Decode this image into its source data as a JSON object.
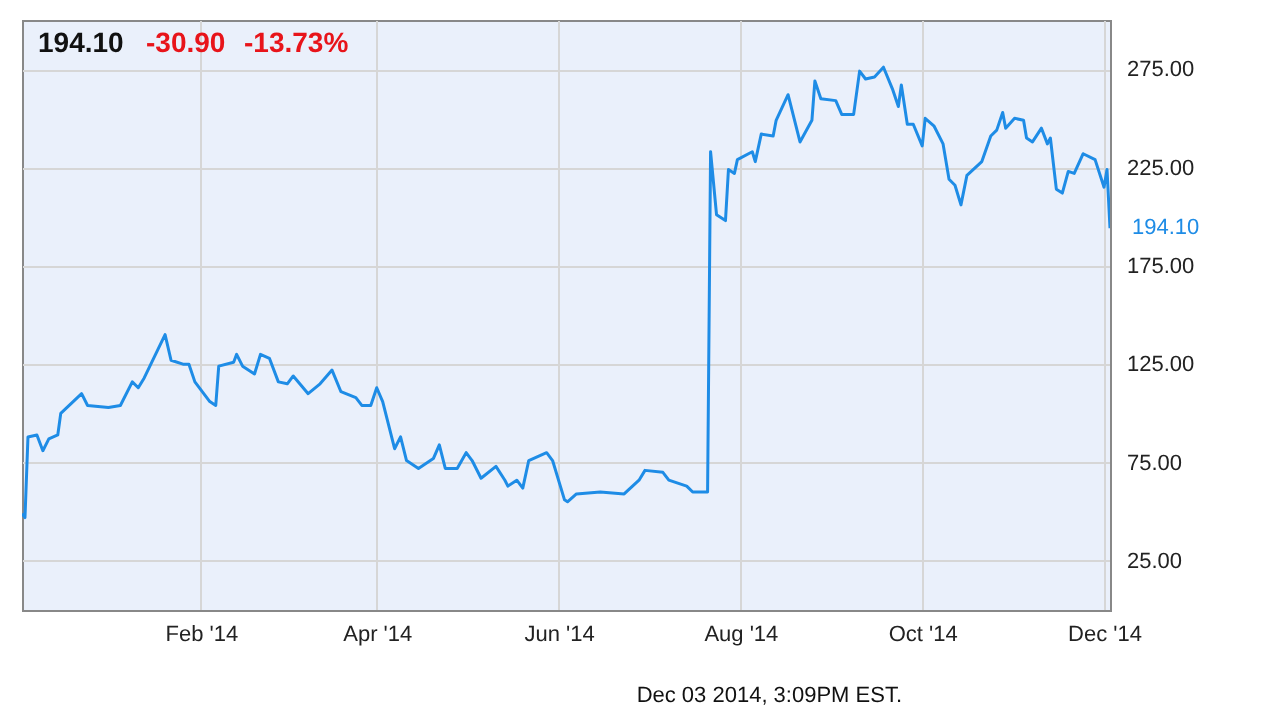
{
  "chart_data": {
    "type": "line",
    "x": [
      "2013-12-03",
      "2013-12-04",
      "2013-12-05",
      "2013-12-08",
      "2013-12-10",
      "2013-12-12",
      "2013-12-15",
      "2013-12-16",
      "2013-12-23",
      "2013-12-25",
      "2014-01-01",
      "2014-01-05",
      "2014-01-09",
      "2014-01-11",
      "2014-01-13",
      "2014-01-20",
      "2014-01-22",
      "2014-01-26",
      "2014-01-28",
      "2014-01-30",
      "2014-02-04",
      "2014-02-06",
      "2014-02-07",
      "2014-02-12",
      "2014-02-13",
      "2014-02-15",
      "2014-02-19",
      "2014-02-21",
      "2014-02-24",
      "2014-02-27",
      "2014-03-02",
      "2014-03-04",
      "2014-03-09",
      "2014-03-13",
      "2014-03-17",
      "2014-03-20",
      "2014-03-25",
      "2014-03-27",
      "2014-03-30",
      "2014-04-01",
      "2014-04-03",
      "2014-04-07",
      "2014-04-09",
      "2014-04-11",
      "2014-04-15",
      "2014-04-20",
      "2014-04-22",
      "2014-04-24",
      "2014-04-28",
      "2014-05-01",
      "2014-05-03",
      "2014-05-06",
      "2014-05-11",
      "2014-05-14",
      "2014-05-15",
      "2014-05-18",
      "2014-05-20",
      "2014-05-22",
      "2014-05-28",
      "2014-05-30",
      "2014-06-03",
      "2014-06-04",
      "2014-06-07",
      "2014-06-15",
      "2014-06-23",
      "2014-06-28",
      "2014-06-30",
      "2014-07-06",
      "2014-07-08",
      "2014-07-14",
      "2014-07-16",
      "2014-07-21",
      "2014-07-22",
      "2014-07-24",
      "2014-07-27",
      "2014-07-28",
      "2014-07-30",
      "2014-07-31",
      "2014-08-05",
      "2014-08-06",
      "2014-08-08",
      "2014-08-12",
      "2014-08-13",
      "2014-08-17",
      "2014-08-21",
      "2014-08-25",
      "2014-08-26",
      "2014-08-28",
      "2014-09-02",
      "2014-09-04",
      "2014-09-08",
      "2014-09-10",
      "2014-09-12",
      "2014-09-15",
      "2014-09-18",
      "2014-09-21",
      "2014-09-23",
      "2014-09-24",
      "2014-09-26",
      "2014-09-28",
      "2014-10-01",
      "2014-10-02",
      "2014-10-05",
      "2014-10-08",
      "2014-10-10",
      "2014-10-12",
      "2014-10-14",
      "2014-10-16",
      "2014-10-21",
      "2014-10-24",
      "2014-10-26",
      "2014-10-28",
      "2014-10-29",
      "2014-11-01",
      "2014-11-04",
      "2014-11-05",
      "2014-11-07",
      "2014-11-10",
      "2014-11-12",
      "2014-11-13",
      "2014-11-15",
      "2014-11-17",
      "2014-11-19",
      "2014-11-21",
      "2014-11-24",
      "2014-11-28",
      "2014-12-01",
      "2014-12-02",
      "2014-12-03"
    ],
    "series": [
      {
        "color": "#1e8ce6",
        "values": [
          49,
          47,
          88,
          89,
          81,
          87,
          89,
          100,
          110,
          104,
          103,
          104,
          116,
          113,
          118,
          140,
          127,
          125,
          125,
          116,
          106,
          104,
          124,
          126,
          130,
          124,
          120,
          130,
          128,
          116,
          115,
          119,
          110,
          115,
          122,
          111,
          108,
          104,
          104,
          113,
          106,
          82,
          88,
          76,
          72,
          77,
          84,
          72,
          72,
          80,
          76,
          67,
          73,
          66,
          63,
          66,
          62,
          76,
          80,
          76,
          56,
          55,
          59,
          60,
          59,
          66,
          71,
          70,
          66,
          63,
          60,
          60,
          233,
          201,
          198,
          224,
          222,
          229,
          233,
          228,
          242,
          241,
          249,
          262,
          238,
          249,
          269,
          260,
          259,
          252,
          252,
          274,
          270,
          271,
          276,
          265,
          256,
          267,
          247,
          247,
          236,
          250,
          246,
          237,
          219,
          216,
          206,
          221,
          228,
          241,
          244,
          253,
          245,
          250,
          249,
          240,
          238,
          245,
          237,
          240,
          214,
          212,
          223,
          222,
          232,
          229,
          215,
          224,
          194.1
        ]
      }
    ],
    "xlim": [
      "2013-12-03",
      "2014-12-03"
    ],
    "xticks": [
      {
        "value": "2014-02-01",
        "label": "Feb '14"
      },
      {
        "value": "2014-04-01",
        "label": "Apr '14"
      },
      {
        "value": "2014-06-01",
        "label": "Jun '14"
      },
      {
        "value": "2014-08-01",
        "label": "Aug '14"
      },
      {
        "value": "2014-10-01",
        "label": "Oct '14"
      },
      {
        "value": "2014-12-01",
        "label": "Dec '14"
      }
    ],
    "ylim": [
      0,
      300
    ],
    "yticks": [
      {
        "value": 25,
        "label": "25.00"
      },
      {
        "value": 75,
        "label": "75.00"
      },
      {
        "value": 125,
        "label": "125.00"
      },
      {
        "value": 175,
        "label": "175.00"
      },
      {
        "value": 225,
        "label": "225.00"
      },
      {
        "value": 275,
        "label": "275.00"
      }
    ],
    "grid": true,
    "line_style": "solid",
    "annotations": [
      "194.10",
      "-30.90",
      "-13.73%",
      "Dec 03 2014, 3:09PM EST.",
      {
        "text": "194.10",
        "x": "2014-12-03",
        "y": 194.1
      }
    ]
  }
}
